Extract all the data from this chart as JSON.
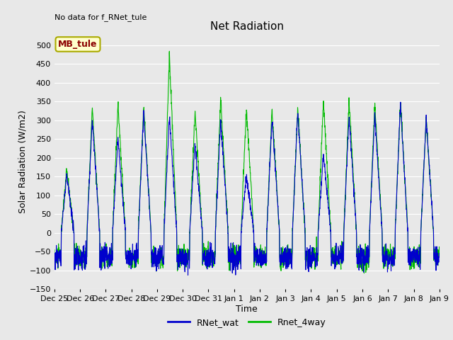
{
  "title": "Net Radiation",
  "xlabel": "Time",
  "ylabel": "Solar Radiation (W/m2)",
  "annotation": "No data for f_RNet_tule",
  "legend_label": "MB_tule",
  "series_labels": [
    "RNet_wat",
    "Rnet_4way"
  ],
  "series_colors": [
    "#0000cc",
    "#00bb00"
  ],
  "ylim": [
    -150,
    530
  ],
  "yticks": [
    -150,
    -100,
    -50,
    0,
    50,
    100,
    150,
    200,
    250,
    300,
    350,
    400,
    450,
    500
  ],
  "xtick_labels": [
    "Dec 25",
    "Dec 26",
    "Dec 27",
    "Dec 28",
    "Dec 29",
    "Dec 30",
    "Dec 31",
    "Jan 1",
    "Jan 2",
    "Jan 3",
    "Jan 4",
    "Jan 5",
    "Jan 6",
    "Jan 7",
    "Jan 8",
    "Jan 9"
  ],
  "background_color": "#e8e8e8",
  "plot_bg_color": "#e8e8e8",
  "grid_color": "#ffffff",
  "title_fontsize": 11,
  "label_fontsize": 9,
  "tick_fontsize": 8,
  "peak_vals_4way": [
    170,
    335,
    340,
    340,
    480,
    320,
    355,
    335,
    330,
    330,
    355,
    355,
    345,
    350,
    305
  ],
  "peak_vals_wat": [
    155,
    300,
    255,
    320,
    315,
    240,
    305,
    150,
    305,
    325,
    210,
    310,
    315,
    345,
    305
  ],
  "night_base": -65,
  "night_noise": 15,
  "n_points_per_day": 144
}
